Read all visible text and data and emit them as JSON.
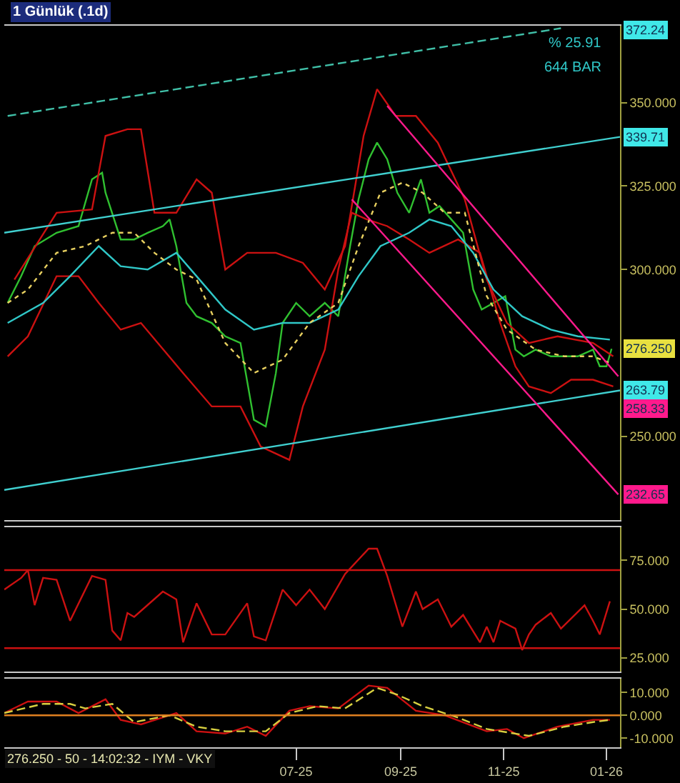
{
  "chart_data": [
    {
      "type": "line",
      "title": "1 Günlük (.1d)",
      "xlim": [
        "2025-01-09",
        "2026-01-09"
      ],
      "ylim": [
        225,
        373
      ],
      "yticks": [
        {
          "value": 250,
          "label": "250.000"
        },
        {
          "value": 300,
          "label": "300.000"
        },
        {
          "value": 325,
          "label": "325.000"
        },
        {
          "value": 350,
          "label": "350.000"
        }
      ],
      "tick_labels": "y",
      "grid": false,
      "marker": "none",
      "series": [
        {
          "color": "#30c030",
          "x": [
            "2025-01-11",
            "2025-01-19",
            "2025-01-27",
            "2025-02-09",
            "2025-02-22",
            "2025-03-02",
            "2025-03-08",
            "2025-03-10",
            "2025-03-19",
            "2025-03-27",
            "2025-04-04",
            "2025-04-13",
            "2025-04-17",
            "2025-04-21",
            "2025-04-27",
            "2025-05-03",
            "2025-05-12",
            "2025-05-20",
            "2025-05-29",
            "2025-06-06",
            "2025-06-13",
            "2025-06-19",
            "2025-06-23",
            "2025-07-01",
            "2025-07-09",
            "2025-07-18",
            "2025-07-26",
            "2025-08-02",
            "2025-08-07",
            "2025-08-13",
            "2025-08-18",
            "2025-08-24",
            "2025-08-30",
            "2025-09-06",
            "2025-09-13",
            "2025-09-18",
            "2025-09-24",
            "2025-10-01",
            "2025-10-08",
            "2025-10-14",
            "2025-10-19",
            "2025-10-26",
            "2025-11-02",
            "2025-11-08",
            "2025-11-13",
            "2025-11-20",
            "2025-11-29",
            "2025-12-07",
            "2025-12-15",
            "2025-12-24",
            "2025-12-28",
            "2026-01-01",
            "2026-01-04"
          ],
          "values": [
            290,
            298,
            307,
            311,
            313,
            327,
            329,
            323,
            309,
            309,
            311,
            313,
            315,
            307,
            290,
            286,
            284,
            280,
            278,
            255,
            253,
            269,
            284,
            290,
            286,
            290,
            286,
            307,
            321,
            333,
            338,
            333,
            323,
            317,
            327,
            317,
            319,
            315,
            311,
            294,
            288,
            290,
            292,
            276,
            274,
            276,
            274,
            274,
            274,
            276,
            271,
            271,
            276.25
          ]
        },
        {
          "color": "#cc1111",
          "x": [
            "2025-01-15",
            "2025-02-09",
            "2025-03-02",
            "2025-03-10",
            "2025-03-23",
            "2025-03-31",
            "2025-04-08",
            "2025-04-21",
            "2025-05-03",
            "2025-05-12",
            "2025-05-20",
            "2025-06-02",
            "2025-06-19",
            "2025-07-05",
            "2025-07-18",
            "2025-07-30",
            "2025-08-10",
            "2025-08-18",
            "2025-08-29",
            "2025-09-10",
            "2025-09-23",
            "2025-10-09",
            "2025-10-22",
            "2025-11-03",
            "2025-11-16",
            "2025-12-03",
            "2025-12-24",
            "2026-01-05"
          ],
          "values": [
            297,
            317,
            318,
            340,
            342,
            342,
            317,
            317,
            327,
            323,
            300,
            305,
            305,
            302,
            294,
            307,
            340,
            354,
            346,
            346,
            338,
            321,
            297,
            284,
            278,
            280,
            278,
            274
          ]
        },
        {
          "color": "#cc1111",
          "x": [
            "2025-01-11",
            "2025-01-23",
            "2025-02-09",
            "2025-02-22",
            "2025-03-06",
            "2025-03-19",
            "2025-03-31",
            "2025-04-25",
            "2025-05-12",
            "2025-05-29",
            "2025-06-10",
            "2025-06-27",
            "2025-07-05",
            "2025-07-18",
            "2025-07-26",
            "2025-08-03",
            "2025-08-12",
            "2025-08-24",
            "2025-09-06",
            "2025-09-18",
            "2025-10-05",
            "2025-10-18",
            "2025-10-30",
            "2025-11-08",
            "2025-11-16",
            "2025-11-29",
            "2025-12-11",
            "2025-12-24",
            "2026-01-05"
          ],
          "values": [
            274,
            280,
            298,
            298,
            290,
            282,
            284,
            269,
            259,
            259,
            247,
            243,
            259,
            276,
            300,
            317,
            315,
            313,
            309,
            305,
            309,
            305,
            284,
            271,
            265,
            263,
            267,
            267,
            265
          ]
        },
        {
          "color": "#30c8c8",
          "x": [
            "2025-01-11",
            "2025-02-01",
            "2025-02-17",
            "2025-03-06",
            "2025-03-19",
            "2025-04-04",
            "2025-04-21",
            "2025-05-03",
            "2025-05-20",
            "2025-06-06",
            "2025-06-23",
            "2025-07-09",
            "2025-07-26",
            "2025-08-07",
            "2025-08-20",
            "2025-09-06",
            "2025-09-18",
            "2025-10-01",
            "2025-10-14",
            "2025-10-26",
            "2025-11-12",
            "2025-11-29",
            "2025-12-15",
            "2026-01-03"
          ],
          "values": [
            284,
            290,
            298,
            307,
            301,
            300,
            305,
            298,
            288,
            282,
            284,
            284,
            288,
            298,
            307,
            311,
            315,
            313,
            305,
            294,
            286,
            282,
            280,
            279
          ]
        },
        {
          "color": "#e8d060",
          "line_style": "dotted",
          "x": [
            "2025-01-11",
            "2025-01-23",
            "2025-02-09",
            "2025-02-26",
            "2025-03-14",
            "2025-03-27",
            "2025-04-08",
            "2025-04-21",
            "2025-05-03",
            "2025-05-20",
            "2025-06-06",
            "2025-06-23",
            "2025-07-09",
            "2025-07-26",
            "2025-08-07",
            "2025-08-20",
            "2025-09-02",
            "2025-09-14",
            "2025-09-27",
            "2025-10-09",
            "2025-10-22",
            "2025-11-03",
            "2025-11-20",
            "2025-12-07",
            "2025-12-24",
            "2026-01-03"
          ],
          "values": [
            290,
            294,
            305,
            307,
            311,
            311,
            305,
            300,
            297,
            278,
            269,
            273,
            284,
            290,
            307,
            323,
            326,
            323,
            317,
            317,
            292,
            282,
            276,
            274,
            274,
            272
          ]
        },
        {
          "color": "#40d0d0",
          "x": [
            "2025-01-09",
            "2026-01-09"
          ],
          "values": [
            311,
            339.71
          ]
        },
        {
          "color": "#40d0d0",
          "x": [
            "2025-01-09",
            "2026-01-09"
          ],
          "values": [
            234,
            263.79
          ]
        },
        {
          "color": "#40c0a8",
          "line_style": "dashed",
          "x": [
            "2025-01-11",
            "2025-12-05"
          ],
          "values": [
            346,
            372.24
          ]
        },
        {
          "color": "#ff1a8c",
          "x": [
            "2025-08-24",
            "2026-01-08"
          ],
          "values": [
            349,
            268
          ]
        },
        {
          "color": "#ff1a8c",
          "x": [
            "2025-08-03",
            "2026-01-08"
          ],
          "values": [
            321,
            232.65
          ]
        }
      ],
      "annotations": [
        {
          "text": "339.71",
          "x": "2026-01-09",
          "y": 339.71
        },
        {
          "text": "276.250",
          "x": "2026-01-04",
          "y": 276.25
        },
        {
          "text": "263.79",
          "x": "2026-01-09",
          "y": 263.79
        },
        {
          "text": "232.65",
          "x": "2026-01-08",
          "y": 232.65
        },
        "372.24",
        "% 25.91",
        "644 BAR",
        "258.33"
      ]
    },
    {
      "type": "line",
      "xlim": [
        "2025-01-09",
        "2026-01-09"
      ],
      "ylim": [
        18,
        92
      ],
      "yticks": [
        {
          "value": 25,
          "label": "25.000"
        },
        {
          "value": 50,
          "label": "50.000"
        },
        {
          "value": 75,
          "label": "75.000"
        }
      ],
      "tick_labels": "y",
      "grid": false,
      "marker": "none",
      "ref_lines": [
        {
          "axis": "y",
          "value": 70,
          "color": "#cc1111"
        },
        {
          "axis": "y",
          "value": 30,
          "color": "#cc1111"
        }
      ],
      "series": [
        {
          "color": "#cc1111",
          "x": [
            "2025-01-09",
            "2025-01-19",
            "2025-01-23",
            "2025-01-27",
            "2025-02-01",
            "2025-02-09",
            "2025-02-17",
            "2025-03-02",
            "2025-03-10",
            "2025-03-14",
            "2025-03-19",
            "2025-03-23",
            "2025-03-27",
            "2025-04-13",
            "2025-04-21",
            "2025-04-25",
            "2025-05-03",
            "2025-05-12",
            "2025-05-20",
            "2025-06-02",
            "2025-06-06",
            "2025-06-13",
            "2025-06-23",
            "2025-07-01",
            "2025-07-09",
            "2025-07-18",
            "2025-07-30",
            "2025-08-13",
            "2025-08-18",
            "2025-08-24",
            "2025-09-02",
            "2025-09-10",
            "2025-09-14",
            "2025-09-23",
            "2025-09-27",
            "2025-10-01",
            "2025-10-08",
            "2025-10-18",
            "2025-10-22",
            "2025-10-26",
            "2025-10-30",
            "2025-11-08",
            "2025-11-12",
            "2025-11-16",
            "2025-11-20",
            "2025-11-29",
            "2025-12-05",
            "2025-12-19",
            "2025-12-24",
            "2025-12-28",
            "2026-01-03"
          ],
          "values": [
            60,
            66,
            70,
            52,
            66,
            65,
            44,
            67,
            65,
            39,
            34,
            48,
            46,
            59,
            55,
            33,
            53,
            37,
            37,
            53,
            36,
            34,
            60,
            52,
            60,
            50,
            68,
            81,
            81,
            67,
            41,
            59,
            50,
            55,
            48,
            41,
            47,
            33,
            41,
            33,
            44,
            40,
            29,
            37,
            42,
            48,
            40,
            52,
            44,
            37,
            54
          ]
        }
      ]
    },
    {
      "type": "line",
      "xlim": [
        "2025-01-09",
        "2026-01-09"
      ],
      "ylim": [
        -14,
        16
      ],
      "xticks": [
        {
          "value": "2025-07-01",
          "label": "07-25"
        },
        {
          "value": "2025-09-01",
          "label": "09-25"
        },
        {
          "value": "2025-11-01",
          "label": "11-25"
        },
        {
          "value": "2026-01-01",
          "label": "01-26"
        }
      ],
      "yticks": [
        {
          "value": 10,
          "label": "10.000"
        },
        {
          "value": 0,
          "label": "0.000"
        },
        {
          "value": -10,
          "label": "-10.000"
        }
      ],
      "grid": false,
      "marker": "none",
      "ref_lines": [
        {
          "axis": "y",
          "value": 0,
          "color": "#e08020"
        }
      ],
      "series": [
        {
          "color": "#cc1111",
          "x": [
            "2025-01-09",
            "2025-01-23",
            "2025-02-09",
            "2025-02-22",
            "2025-03-10",
            "2025-03-19",
            "2025-03-31",
            "2025-04-21",
            "2025-05-03",
            "2025-05-20",
            "2025-06-02",
            "2025-06-13",
            "2025-06-27",
            "2025-07-09",
            "2025-07-26",
            "2025-08-13",
            "2025-08-24",
            "2025-09-10",
            "2025-09-27",
            "2025-10-22",
            "2025-11-03",
            "2025-11-13",
            "2025-12-03",
            "2025-12-24",
            "2026-01-03"
          ],
          "values": [
            1,
            6,
            6,
            1,
            7,
            -2,
            -4,
            1,
            -7,
            -8,
            -5,
            -9,
            2,
            4,
            3,
            13,
            12,
            2,
            0,
            -7,
            -6,
            -10,
            -5,
            -2,
            -2
          ]
        },
        {
          "color": "#d8d040",
          "line_style": "dashed",
          "x": [
            "2025-01-09",
            "2025-02-01",
            "2025-02-17",
            "2025-02-26",
            "2025-03-14",
            "2025-03-27",
            "2025-04-17",
            "2025-05-03",
            "2025-05-20",
            "2025-06-13",
            "2025-06-27",
            "2025-07-14",
            "2025-07-30",
            "2025-08-18",
            "2025-08-30",
            "2025-09-14",
            "2025-10-05",
            "2025-10-22",
            "2025-11-16",
            "2025-12-07",
            "2025-12-24",
            "2026-01-03"
          ],
          "values": [
            1,
            5,
            5,
            3,
            5,
            -3,
            0,
            -5,
            -7,
            -7,
            1,
            4,
            3,
            12,
            9,
            4,
            -1,
            -6,
            -9,
            -5,
            -3,
            -2
          ]
        }
      ],
      "annotations": [
        "276.250 - 50 - 14:02:32 - IYM - VKY"
      ]
    }
  ]
}
